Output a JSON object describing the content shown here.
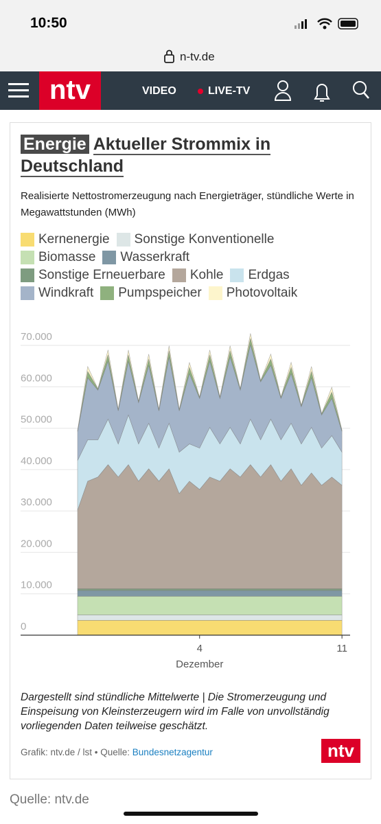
{
  "status": {
    "time": "10:50"
  },
  "browser": {
    "url": "n-tv.de"
  },
  "nav": {
    "logo": "ntv",
    "video": "VIDEO",
    "live": "LIVE-TV"
  },
  "article": {
    "kicker": "Energie",
    "title": "Aktueller Strommix in Deutschland",
    "subtitle": "Realisierte Nettostromerzeugung nach Energieträger, stündliche Werte in Megawattstunden (MWh)",
    "footnote": "Dargestellt sind stündliche Mittelwerte | Die Stromerzeugung und Einspeisung von Kleinsterzeugern wird im Falle von unvollständig vorliegenden Daten teilweise geschätzt.",
    "credit": "Grafik: ntv.de / lst • Quelle: ",
    "source_link": "Bundesnetzagentur",
    "logo": "ntv"
  },
  "page_source": "Quelle: ntv.de",
  "chart_data": {
    "type": "stacked_area",
    "x_label": "Dezember",
    "x": [
      -2,
      -1.5,
      -1,
      -0.5,
      0,
      0.5,
      1,
      1.5,
      2,
      2.5,
      3,
      3.5,
      4,
      4.5,
      5,
      5.5,
      6,
      6.5,
      7,
      7.5,
      8,
      8.5,
      9,
      9.5,
      10,
      10.5,
      11
    ],
    "xlim": [
      -4.8,
      11.4
    ],
    "xticks": [
      4,
      11
    ],
    "ylim": [
      0,
      70000
    ],
    "yticks": [
      {
        "value": 0,
        "label": "0"
      },
      {
        "value": 10000,
        "label": "10.000"
      },
      {
        "value": 20000,
        "label": "20.000"
      },
      {
        "value": 30000,
        "label": "30.000"
      },
      {
        "value": 40000,
        "label": "40.000"
      },
      {
        "value": 50000,
        "label": "50.000"
      },
      {
        "value": 60000,
        "label": "60.000"
      },
      {
        "value": 70000,
        "label": "70.000"
      }
    ],
    "grid": true,
    "series": [
      {
        "name": "Kernenergie",
        "color": "#f8dc72",
        "values": [
          3600,
          3600,
          3600,
          3600,
          3600,
          3600,
          3600,
          3600,
          3600,
          3600,
          3600,
          3600,
          3600,
          3600,
          3600,
          3600,
          3600,
          3600,
          3600,
          3600,
          3600,
          3600,
          3600,
          3600,
          3600,
          3600,
          3600
        ]
      },
      {
        "name": "Sonstige Konventionelle",
        "color": "#dde6e6",
        "values": [
          1300,
          1300,
          1300,
          1300,
          1300,
          1300,
          1300,
          1300,
          1300,
          1300,
          1300,
          1300,
          1300,
          1300,
          1300,
          1300,
          1300,
          1300,
          1300,
          1300,
          1300,
          1300,
          1300,
          1300,
          1300,
          1300,
          1300
        ]
      },
      {
        "name": "Biomasse",
        "color": "#c5e0b3",
        "values": [
          4500,
          4500,
          4500,
          4500,
          4500,
          4500,
          4500,
          4500,
          4500,
          4500,
          4500,
          4500,
          4500,
          4500,
          4500,
          4500,
          4500,
          4500,
          4500,
          4500,
          4500,
          4500,
          4500,
          4500,
          4500,
          4500,
          4500
        ]
      },
      {
        "name": "Wasserkraft",
        "color": "#7f97a4",
        "values": [
          1400,
          1400,
          1400,
          1400,
          1400,
          1400,
          1400,
          1400,
          1400,
          1400,
          1400,
          1400,
          1400,
          1400,
          1400,
          1400,
          1400,
          1400,
          1400,
          1400,
          1400,
          1400,
          1400,
          1400,
          1400,
          1400,
          1400
        ]
      },
      {
        "name": "Sonstige Erneuerbare",
        "color": "#7e9c80",
        "values": [
          400,
          400,
          400,
          400,
          400,
          400,
          400,
          400,
          400,
          400,
          400,
          400,
          400,
          400,
          400,
          400,
          400,
          400,
          400,
          400,
          400,
          400,
          400,
          400,
          400,
          400,
          400
        ]
      },
      {
        "name": "Kohle",
        "color": "#b4a79c",
        "values": [
          19000,
          26000,
          27000,
          30000,
          27000,
          30000,
          26000,
          29000,
          26000,
          29000,
          23000,
          26000,
          24000,
          27000,
          26000,
          29000,
          27000,
          30000,
          27000,
          30000,
          26000,
          29000,
          25000,
          28000,
          25000,
          27000,
          25000
        ]
      },
      {
        "name": "Erdgas",
        "color": "#c9e3ed",
        "values": [
          12000,
          10000,
          9000,
          11000,
          8000,
          12000,
          9000,
          11000,
          8000,
          11000,
          10000,
          9000,
          10000,
          12000,
          9000,
          10000,
          8000,
          11000,
          9000,
          11000,
          10000,
          11000,
          10000,
          11000,
          9000,
          10000,
          8000
        ]
      },
      {
        "name": "Windkraft",
        "color": "#a4b4c9",
        "values": [
          7000,
          15000,
          12000,
          14000,
          8000,
          13000,
          10000,
          14000,
          9000,
          16000,
          10000,
          17000,
          12000,
          16000,
          11000,
          17000,
          13000,
          18000,
          14000,
          13000,
          10000,
          12000,
          9000,
          12000,
          8000,
          9000,
          5000
        ]
      },
      {
        "name": "Pumpspeicher",
        "color": "#8fb17e",
        "values": [
          200,
          1500,
          300,
          1500,
          300,
          1500,
          300,
          1500,
          300,
          1500,
          300,
          1500,
          300,
          1500,
          300,
          1500,
          300,
          1500,
          300,
          1500,
          300,
          1500,
          300,
          1500,
          300,
          1500,
          300
        ]
      },
      {
        "name": "Photovoltaik",
        "color": "#fdf5cc",
        "values": [
          0,
          1200,
          0,
          1200,
          0,
          1200,
          0,
          1200,
          0,
          1200,
          0,
          1200,
          0,
          1200,
          0,
          1200,
          0,
          1200,
          0,
          1200,
          0,
          1200,
          0,
          1200,
          0,
          1200,
          0
        ]
      }
    ]
  }
}
